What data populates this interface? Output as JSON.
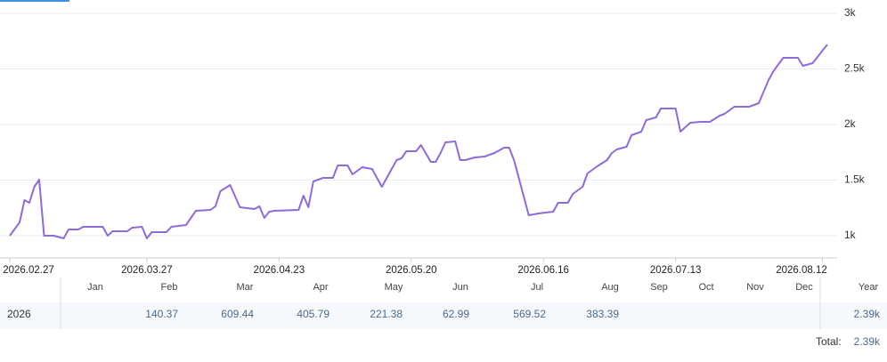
{
  "chart_data": {
    "type": "line",
    "x": [
      "2026.02.27",
      "2026.03.01",
      "2026.03.02",
      "2026.03.03",
      "2026.03.04",
      "2026.03.05",
      "2026.03.06",
      "2026.03.08",
      "2026.03.10",
      "2026.03.11",
      "2026.03.13",
      "2026.03.14",
      "2026.03.18",
      "2026.03.19",
      "2026.03.20",
      "2026.03.23",
      "2026.03.24",
      "2026.03.26",
      "2026.03.27",
      "2026.03.28",
      "2026.03.31",
      "2026.04.01",
      "2026.04.04",
      "2026.04.06",
      "2026.04.09",
      "2026.04.10",
      "2026.04.11",
      "2026.04.13",
      "2026.04.15",
      "2026.04.18",
      "2026.04.19",
      "2026.04.20",
      "2026.04.21",
      "2026.04.22",
      "2026.04.27",
      "2026.04.28",
      "2026.04.29",
      "2026.04.30",
      "2026.05.02",
      "2026.05.04",
      "2026.05.05",
      "2026.05.07",
      "2026.05.08",
      "2026.05.10",
      "2026.05.12",
      "2026.05.14",
      "2026.05.15",
      "2026.05.17",
      "2026.05.18",
      "2026.05.19",
      "2026.05.21",
      "2026.05.22",
      "2026.05.24",
      "2026.05.25",
      "2026.05.26",
      "2026.05.27",
      "2026.05.29",
      "2026.05.30",
      "2026.05.31",
      "2026.06.02",
      "2026.06.04",
      "2026.06.06",
      "2026.06.08",
      "2026.06.09",
      "2026.06.10",
      "2026.06.13",
      "2026.06.15",
      "2026.06.18",
      "2026.06.19",
      "2026.06.21",
      "2026.06.22",
      "2026.06.24",
      "2026.06.25",
      "2026.06.27",
      "2026.06.29",
      "2026.06.30",
      "2026.07.01",
      "2026.07.03",
      "2026.07.04",
      "2026.07.06",
      "2026.07.07",
      "2026.07.09",
      "2026.07.10",
      "2026.07.13",
      "2026.07.14",
      "2026.07.16",
      "2026.07.18",
      "2026.07.20",
      "2026.07.22",
      "2026.07.23",
      "2026.07.25",
      "2026.07.28",
      "2026.07.30",
      "2026.08.01",
      "2026.08.02",
      "2026.08.04",
      "2026.08.07",
      "2026.08.08",
      "2026.08.10",
      "2026.08.11",
      "2026.08.13"
    ],
    "series": [
      {
        "color": "#8f6ad9",
        "values": [
          1000,
          1120,
          1320,
          1296,
          1440,
          1504,
          1000,
          1000,
          976,
          1056,
          1056,
          1080,
          1080,
          1000,
          1040,
          1040,
          1072,
          1080,
          976,
          1032,
          1032,
          1080,
          1096,
          1224,
          1232,
          1264,
          1400,
          1456,
          1256,
          1240,
          1264,
          1160,
          1216,
          1224,
          1232,
          1360,
          1256,
          1488,
          1520,
          1520,
          1632,
          1632,
          1552,
          1616,
          1600,
          1440,
          1520,
          1680,
          1696,
          1760,
          1760,
          1816,
          1664,
          1664,
          1744,
          1840,
          1848,
          1680,
          1680,
          1704,
          1712,
          1744,
          1792,
          1792,
          1680,
          1184,
          1200,
          1216,
          1296,
          1296,
          1376,
          1440,
          1560,
          1624,
          1680,
          1744,
          1776,
          1800,
          1904,
          1936,
          2040,
          2064,
          2144,
          2144,
          1936,
          2016,
          2024,
          2024,
          2080,
          2096,
          2160,
          2160,
          2192,
          2400,
          2480,
          2600,
          2600,
          2528,
          2552,
          2608,
          2720
        ]
      }
    ],
    "xlim": [
      "2026.02.25",
      "2026.08.15"
    ],
    "xticks": [
      "2026.02.27",
      "2026.03.27",
      "2026.04.23",
      "2026.05.20",
      "2026.06.16",
      "2026.07.13",
      "2026.08.12"
    ],
    "ylim": [
      800,
      3000
    ],
    "yticks": [
      {
        "value": 1000,
        "label": "1k"
      },
      {
        "value": 1500,
        "label": "1.5k"
      },
      {
        "value": 2000,
        "label": "2k"
      },
      {
        "value": 2500,
        "label": "2.5k"
      },
      {
        "value": 3000,
        "label": "3k"
      }
    ],
    "grid": true
  },
  "table": {
    "columns": [
      "Jan",
      "Feb",
      "Mar",
      "Apr",
      "May",
      "Jun",
      "Jul",
      "Aug",
      "Sep",
      "Oct",
      "Nov",
      "Dec"
    ],
    "year_header": "Year",
    "rows": [
      {
        "label": "2026",
        "cells": [
          null,
          "140.37",
          "609.44",
          "405.79",
          "221.38",
          "62.99",
          "569.52",
          "383.39",
          null,
          null,
          null,
          null
        ],
        "year": "2.39k"
      }
    ],
    "total_label": "Total:",
    "total": "2.39k"
  }
}
